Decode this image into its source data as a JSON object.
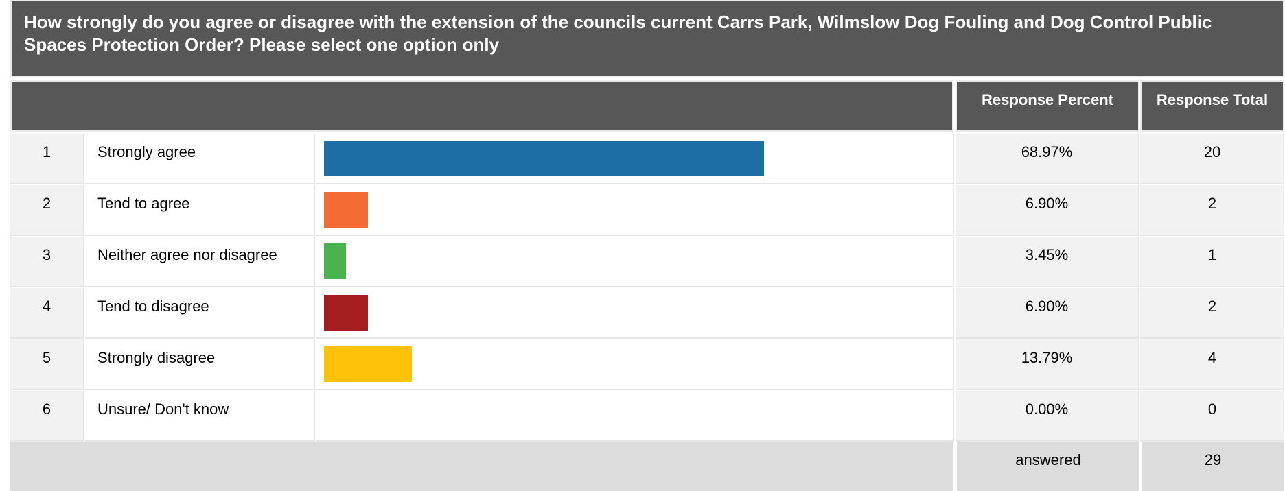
{
  "question": {
    "title": "How strongly do you agree or disagree with the extension of the councils current Carrs Park, Wilmslow Dog Fouling and Dog Control Public Spaces Protection Order? Please select one option only"
  },
  "headers": {
    "response_percent": "Response Percent",
    "response_total": "Response Total"
  },
  "rows": [
    {
      "num": "1",
      "label": "Strongly agree",
      "percent": "68.97%",
      "total": "20",
      "fraction": 0.6897,
      "color": "#1c6ea4"
    },
    {
      "num": "2",
      "label": "Tend to agree",
      "percent": "6.90%",
      "total": "2",
      "fraction": 0.069,
      "color": "#f26b33"
    },
    {
      "num": "3",
      "label": "Neither agree nor disagree",
      "percent": "3.45%",
      "total": "1",
      "fraction": 0.0345,
      "color": "#4bb34e"
    },
    {
      "num": "4",
      "label": "Tend to disagree",
      "percent": "6.90%",
      "total": "2",
      "fraction": 0.069,
      "color": "#a31c1e"
    },
    {
      "num": "5",
      "label": "Strongly disagree",
      "percent": "13.79%",
      "total": "4",
      "fraction": 0.1379,
      "color": "#ffc10a"
    },
    {
      "num": "6",
      "label": "Unsure/ Don't know",
      "percent": "0.00%",
      "total": "0",
      "fraction": 0,
      "color": "#cccccc"
    }
  ],
  "footer": {
    "answered_label": "answered",
    "answered_value": "29"
  }
}
